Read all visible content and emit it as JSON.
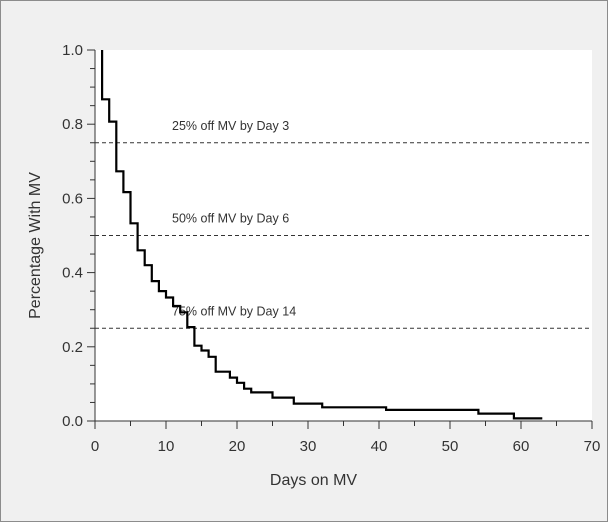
{
  "chart_data": {
    "type": "line",
    "step": true,
    "xlabel": "Days on MV",
    "ylabel": "Percentage With MV",
    "xlim": [
      0,
      70
    ],
    "ylim": [
      0.0,
      1.0
    ],
    "x_ticks": [
      0,
      10,
      20,
      30,
      40,
      50,
      60,
      70
    ],
    "x_tick_labels": [
      "0",
      "10",
      "20",
      "30",
      "40",
      "50",
      "60",
      "70"
    ],
    "y_ticks": [
      0.0,
      0.2,
      0.4,
      0.6,
      0.8,
      1.0
    ],
    "y_tick_labels": [
      "0.0",
      "0.2",
      "0.4",
      "0.6",
      "0.8",
      "1.0"
    ],
    "grid": false,
    "series": [
      {
        "x": [
          1,
          1,
          2,
          2,
          3,
          3,
          4,
          4,
          5,
          5,
          6,
          6,
          7,
          7,
          8,
          8,
          9,
          9,
          10,
          10,
          11,
          11,
          12,
          12,
          13,
          13,
          14,
          14,
          15,
          15,
          16,
          16,
          17,
          17,
          19,
          19,
          20,
          20,
          21,
          21,
          22,
          22,
          25,
          25,
          28,
          28,
          32,
          32,
          41,
          41,
          54,
          54,
          59,
          59,
          63
        ],
        "y": [
          1.0,
          0.867,
          0.867,
          0.807,
          0.807,
          0.673,
          0.673,
          0.617,
          0.617,
          0.533,
          0.533,
          0.46,
          0.46,
          0.42,
          0.42,
          0.377,
          0.377,
          0.35,
          0.35,
          0.333,
          0.333,
          0.31,
          0.31,
          0.293,
          0.293,
          0.253,
          0.253,
          0.203,
          0.203,
          0.19,
          0.19,
          0.173,
          0.173,
          0.133,
          0.133,
          0.117,
          0.117,
          0.103,
          0.103,
          0.087,
          0.087,
          0.077,
          0.077,
          0.063,
          0.063,
          0.047,
          0.047,
          0.037,
          0.037,
          0.03,
          0.03,
          0.02,
          0.02,
          0.007,
          0.007
        ]
      }
    ],
    "reference_lines": [
      {
        "y": 0.75,
        "style": "dashed",
        "label": "25% off MV by Day 3"
      },
      {
        "y": 0.5,
        "style": "dashed",
        "label": "50% off MV by Day 6"
      },
      {
        "y": 0.25,
        "style": "dashed",
        "label": "75% off MV by Day 14"
      }
    ],
    "colors": {
      "line": "#000000",
      "background": "#f0f0f0",
      "text": "#333333"
    }
  }
}
